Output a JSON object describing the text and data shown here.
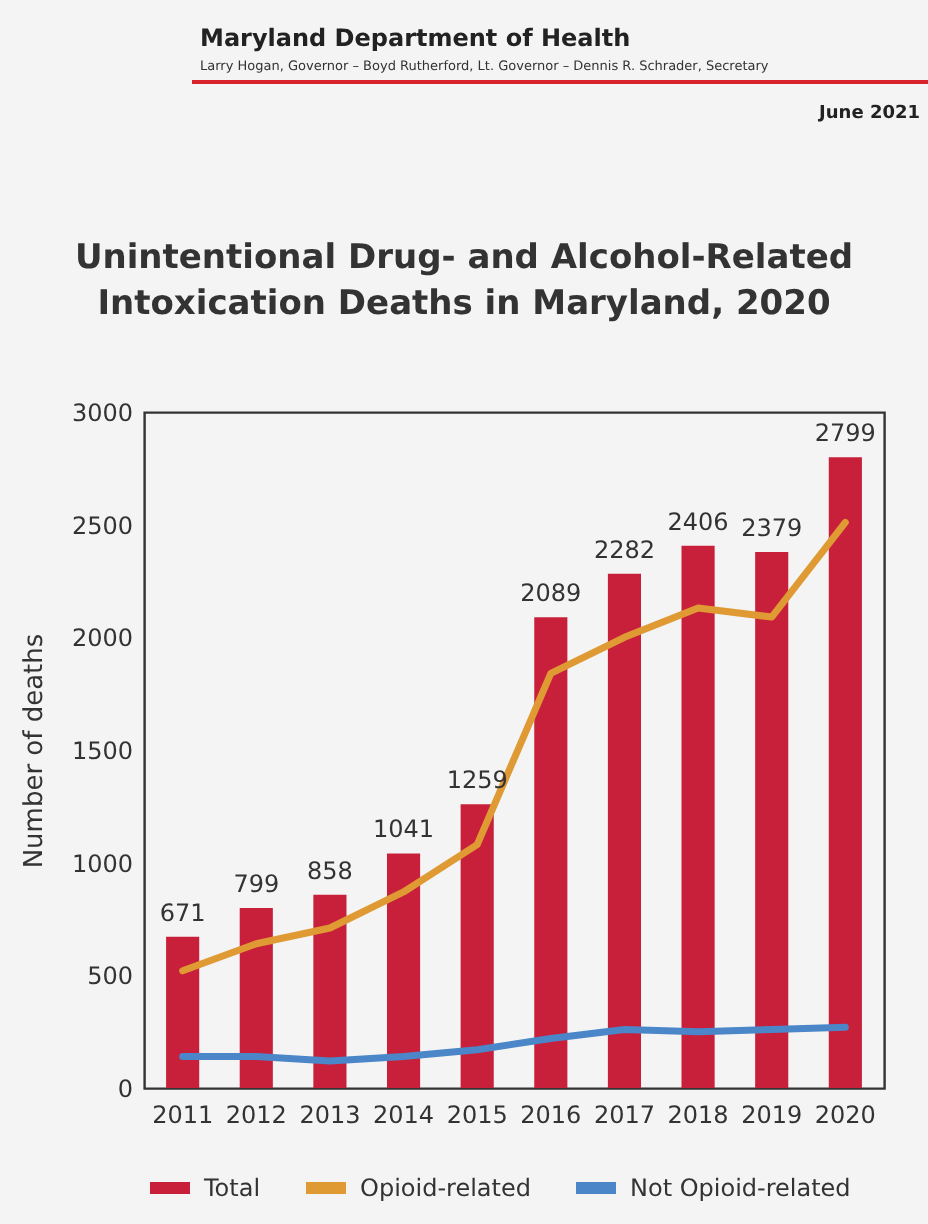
{
  "chart_data": {
    "type": "bar",
    "title": "Unintentional Drug- and Alcohol-Related Intoxication Deaths in Maryland, 2020",
    "ylabel": "Number of deaths",
    "annotations": [
      "Maryland Department of Health",
      "Larry Hogan, Governor – Boyd Rutherford, Lt. Governor – Dennis R. Schrader, Secretary",
      "June 2021"
    ],
    "categories": [
      "2011",
      "2012",
      "2013",
      "2014",
      "2015",
      "2016",
      "2017",
      "2018",
      "2019",
      "2020"
    ],
    "series": [
      {
        "name": "Total",
        "color": "#c8203a",
        "values": [
          671,
          799,
          858,
          1041,
          1259,
          2089,
          2282,
          2406,
          2379,
          2799
        ],
        "value_labels": [
          "671",
          "799",
          "858",
          "1041",
          "1259",
          "2089",
          "2282",
          "2406",
          "2379",
          "2799"
        ]
      },
      {
        "name": "Opioid-related",
        "type": "line",
        "color": "#e09a33",
        "values": [
          520,
          640,
          710,
          870,
          1080,
          1840,
          2000,
          2130,
          2090,
          2510
        ]
      },
      {
        "name": "Not Opioid-related",
        "type": "line",
        "color": "#4a86c8",
        "values": [
          140,
          140,
          120,
          140,
          170,
          220,
          260,
          250,
          260,
          270
        ]
      }
    ],
    "ylim": [
      0,
      3000
    ],
    "yticks": [
      0,
      500,
      1000,
      1500,
      2000,
      2500,
      3000
    ],
    "legend": "bottom"
  }
}
